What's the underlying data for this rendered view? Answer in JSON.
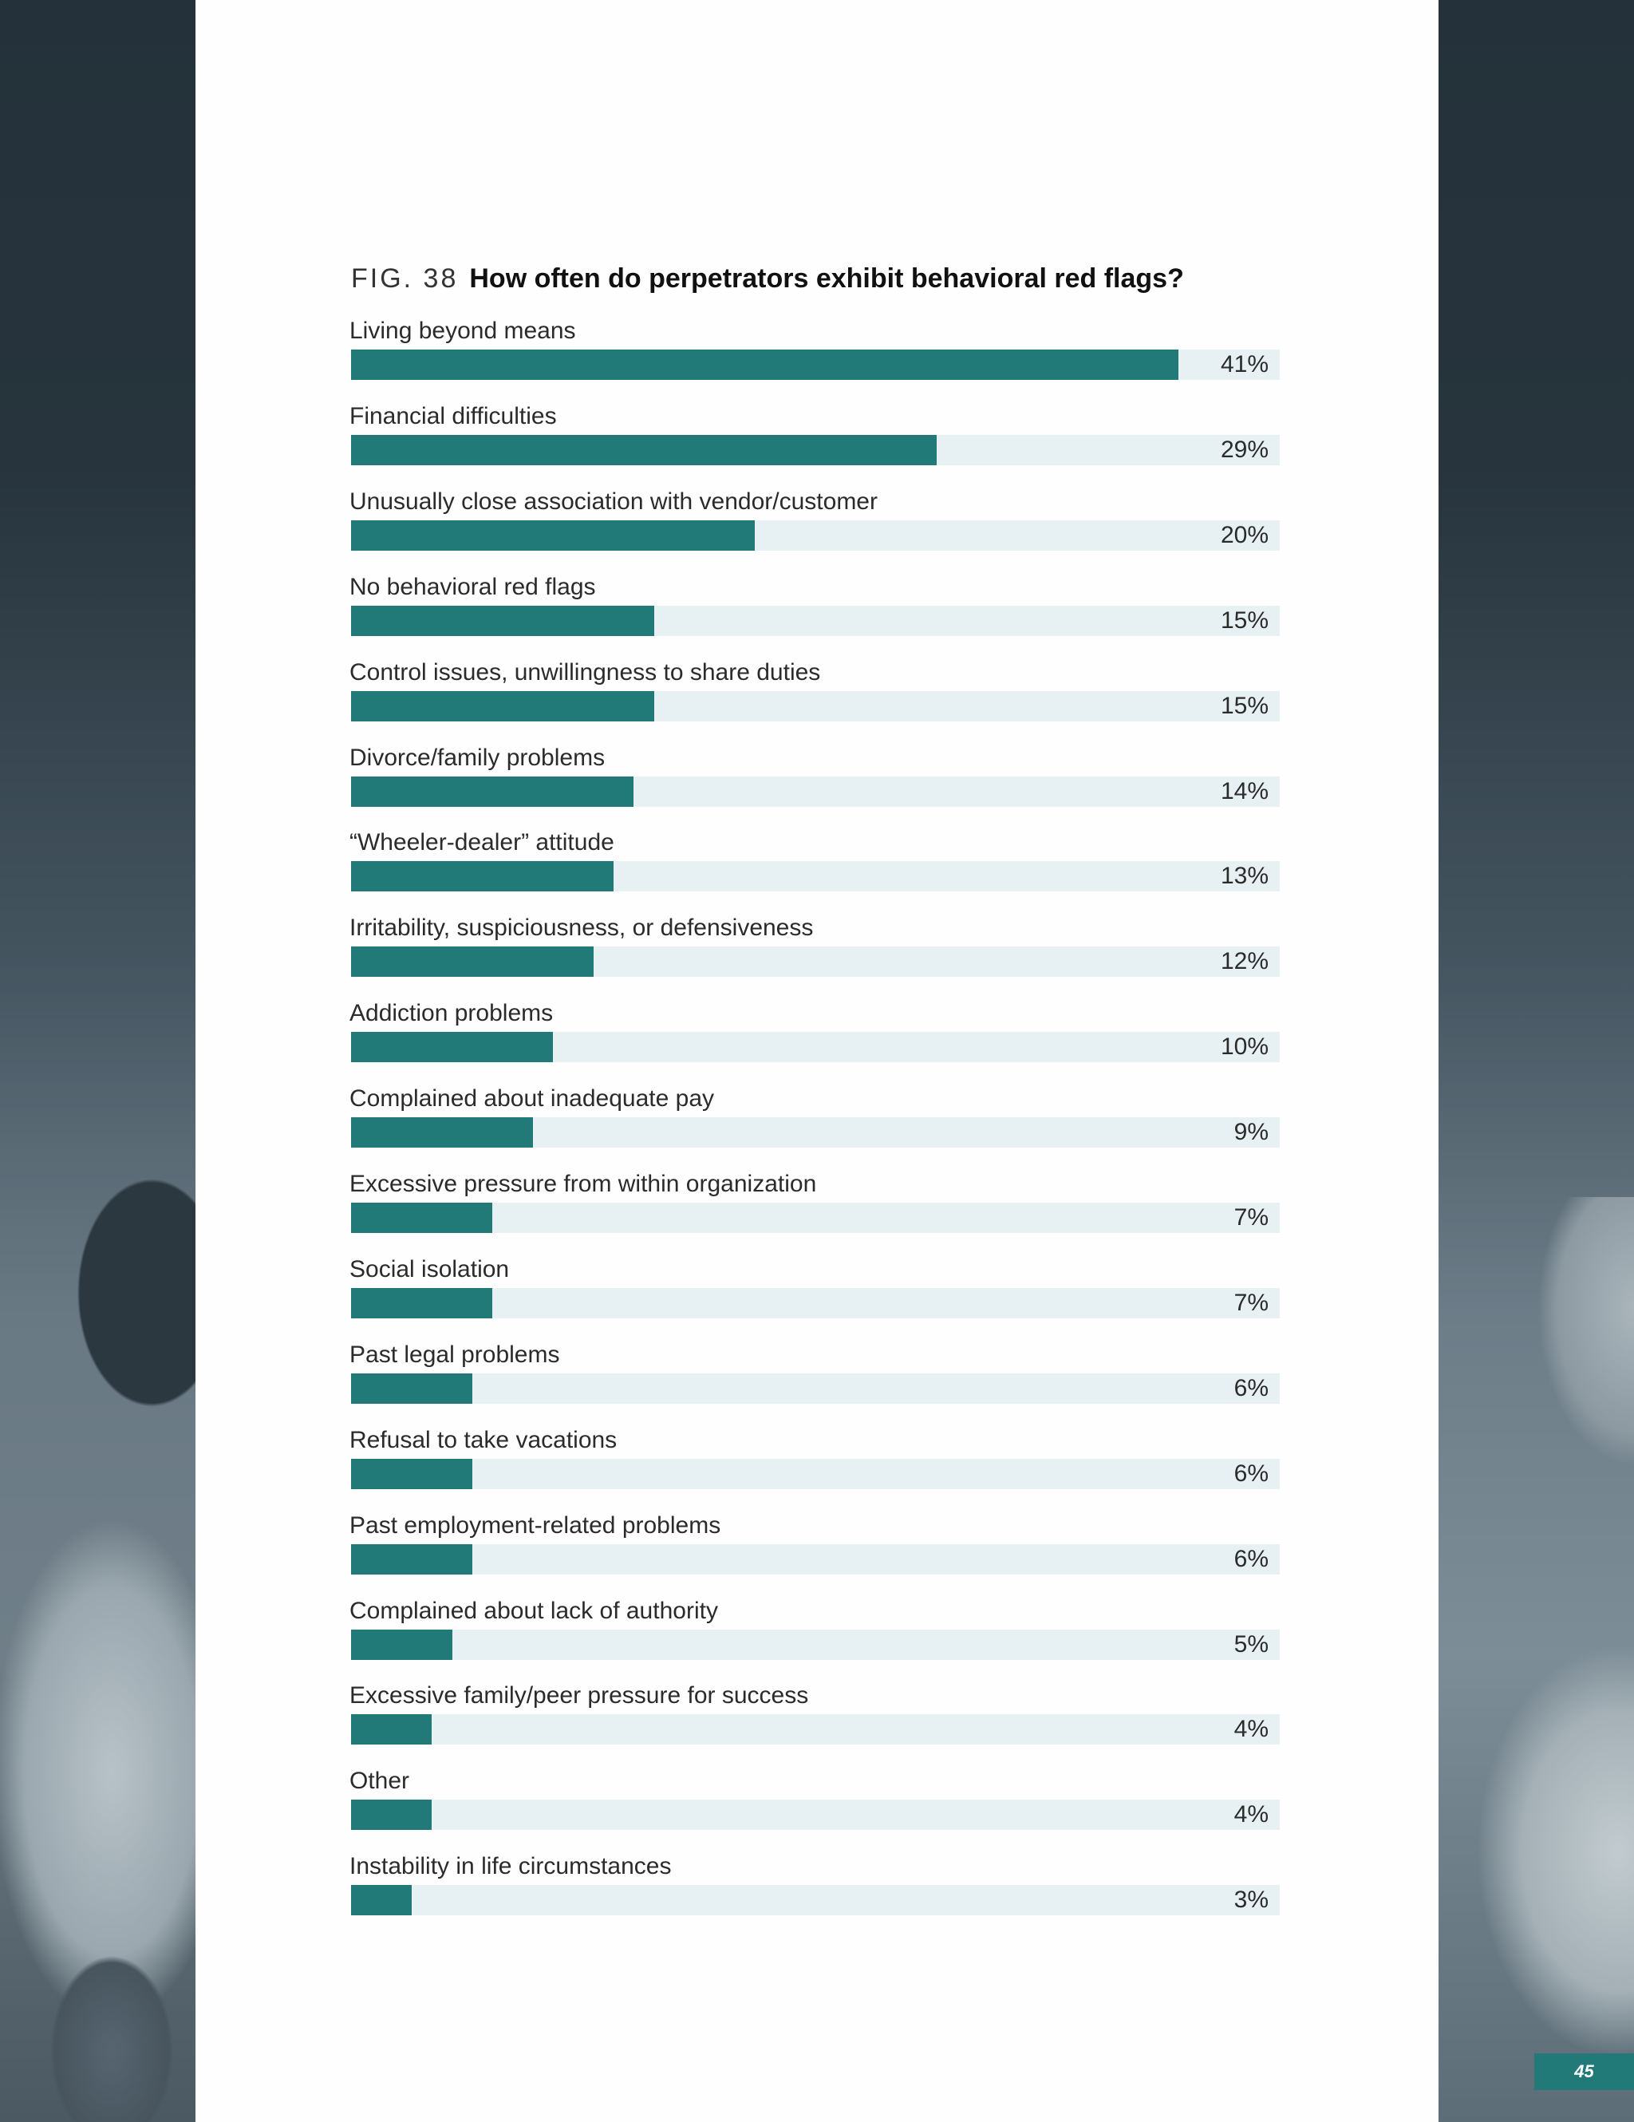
{
  "figure": {
    "number": "FIG. 38",
    "question": "How often do perpetrators exhibit behavioral red flags?"
  },
  "chart_data": {
    "type": "bar",
    "orientation": "horizontal",
    "title": "How often do perpetrators exhibit behavioral red flags?",
    "xlim": [
      0,
      46
    ],
    "categories": [
      "Living beyond means",
      "Financial difficulties",
      "Unusually close association with vendor/customer",
      "No behavioral red flags",
      "Control issues, unwillingness to share duties",
      "Divorce/family problems",
      "“Wheeler-dealer” attitude",
      "Irritability, suspiciousness, or defensiveness",
      "Addiction problems",
      "Complained about inadequate pay",
      "Excessive pressure from within organization",
      "Social isolation",
      "Past legal problems",
      "Refusal to take vacations",
      "Past employment-related problems",
      "Complained about lack of authority",
      "Excessive family/peer pressure for success",
      "Other",
      "Instability in life circumstances"
    ],
    "values": [
      41,
      29,
      20,
      15,
      15,
      14,
      13,
      12,
      10,
      9,
      7,
      7,
      6,
      6,
      6,
      5,
      4,
      4,
      3
    ],
    "value_labels": [
      "41%",
      "29%",
      "20%",
      "15%",
      "15%",
      "14%",
      "13%",
      "12%",
      "10%",
      "9%",
      "7%",
      "7%",
      "6%",
      "6%",
      "6%",
      "5%",
      "4%",
      "4%",
      "3%"
    ],
    "colors": {
      "bar": "#217a77",
      "track": "#e7f0f3"
    }
  },
  "page_number": "45",
  "colors": {
    "accent": "#217a77",
    "background": "#222e35"
  }
}
